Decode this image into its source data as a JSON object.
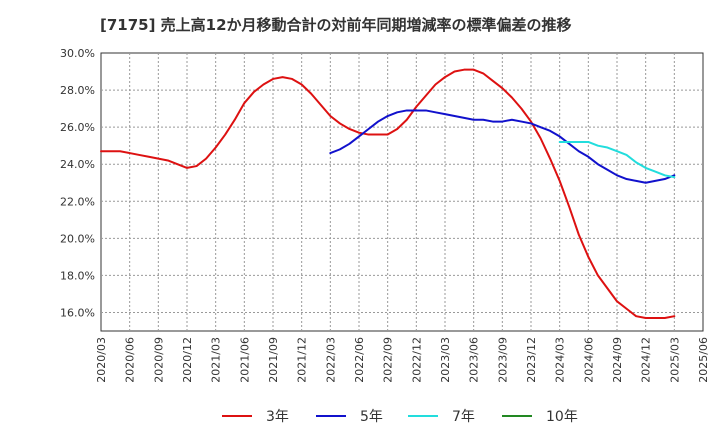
{
  "chart_data": {
    "type": "line",
    "title": "[7175]  売上高12か月移動合計の対前年同期増減率の標準偏差の推移",
    "xlabel": "",
    "ylabel": "",
    "ylim": [
      15.0,
      30.0
    ],
    "yticks": [
      "16.0%",
      "18.0%",
      "20.0%",
      "22.0%",
      "24.0%",
      "26.0%",
      "28.0%",
      "30.0%"
    ],
    "ytick_values": [
      16,
      18,
      20,
      22,
      24,
      26,
      28,
      30
    ],
    "xticks": [
      "2020/03",
      "2020/06",
      "2020/09",
      "2020/12",
      "2021/03",
      "2021/06",
      "2021/09",
      "2021/12",
      "2022/03",
      "2022/06",
      "2022/09",
      "2022/12",
      "2023/03",
      "2023/06",
      "2023/09",
      "2023/12",
      "2024/03",
      "2024/06",
      "2024/09",
      "2024/12",
      "2025/03",
      "2025/06"
    ],
    "grid": true,
    "legend": "bottom",
    "series": [
      {
        "name": "3年",
        "color": "#dd1111",
        "points": [
          [
            "2020/03",
            24.7
          ],
          [
            "2020/04",
            24.7
          ],
          [
            "2020/05",
            24.7
          ],
          [
            "2020/06",
            24.6
          ],
          [
            "2020/07",
            24.5
          ],
          [
            "2020/08",
            24.4
          ],
          [
            "2020/09",
            24.3
          ],
          [
            "2020/10",
            24.2
          ],
          [
            "2020/11",
            24.0
          ],
          [
            "2020/12",
            23.8
          ],
          [
            "2021/01",
            23.9
          ],
          [
            "2021/02",
            24.3
          ],
          [
            "2021/03",
            24.9
          ],
          [
            "2021/04",
            25.6
          ],
          [
            "2021/05",
            26.4
          ],
          [
            "2021/06",
            27.3
          ],
          [
            "2021/07",
            27.9
          ],
          [
            "2021/08",
            28.3
          ],
          [
            "2021/09",
            28.6
          ],
          [
            "2021/10",
            28.7
          ],
          [
            "2021/11",
            28.6
          ],
          [
            "2021/12",
            28.3
          ],
          [
            "2022/01",
            27.8
          ],
          [
            "2022/02",
            27.2
          ],
          [
            "2022/03",
            26.6
          ],
          [
            "2022/04",
            26.2
          ],
          [
            "2022/05",
            25.9
          ],
          [
            "2022/06",
            25.7
          ],
          [
            "2022/07",
            25.6
          ],
          [
            "2022/08",
            25.6
          ],
          [
            "2022/09",
            25.6
          ],
          [
            "2022/10",
            25.9
          ],
          [
            "2022/11",
            26.4
          ],
          [
            "2022/12",
            27.1
          ],
          [
            "2023/01",
            27.7
          ],
          [
            "2023/02",
            28.3
          ],
          [
            "2023/03",
            28.7
          ],
          [
            "2023/04",
            29.0
          ],
          [
            "2023/05",
            29.1
          ],
          [
            "2023/06",
            29.1
          ],
          [
            "2023/07",
            28.9
          ],
          [
            "2023/08",
            28.5
          ],
          [
            "2023/09",
            28.1
          ],
          [
            "2023/10",
            27.6
          ],
          [
            "2023/11",
            27.0
          ],
          [
            "2023/12",
            26.3
          ],
          [
            "2024/01",
            25.4
          ],
          [
            "2024/02",
            24.3
          ],
          [
            "2024/03",
            23.1
          ],
          [
            "2024/04",
            21.7
          ],
          [
            "2024/05",
            20.2
          ],
          [
            "2024/06",
            19.0
          ],
          [
            "2024/07",
            18.0
          ],
          [
            "2024/08",
            17.3
          ],
          [
            "2024/09",
            16.6
          ],
          [
            "2024/10",
            16.2
          ],
          [
            "2024/11",
            15.8
          ],
          [
            "2024/12",
            15.7
          ],
          [
            "2025/01",
            15.7
          ],
          [
            "2025/02",
            15.7
          ],
          [
            "2025/03",
            15.8
          ]
        ]
      },
      {
        "name": "5年",
        "color": "#1111cc",
        "points": [
          [
            "2022/03",
            24.6
          ],
          [
            "2022/04",
            24.8
          ],
          [
            "2022/05",
            25.1
          ],
          [
            "2022/06",
            25.5
          ],
          [
            "2022/07",
            25.9
          ],
          [
            "2022/08",
            26.3
          ],
          [
            "2022/09",
            26.6
          ],
          [
            "2022/10",
            26.8
          ],
          [
            "2022/11",
            26.9
          ],
          [
            "2022/12",
            26.9
          ],
          [
            "2023/01",
            26.9
          ],
          [
            "2023/02",
            26.8
          ],
          [
            "2023/03",
            26.7
          ],
          [
            "2023/04",
            26.6
          ],
          [
            "2023/05",
            26.5
          ],
          [
            "2023/06",
            26.4
          ],
          [
            "2023/07",
            26.4
          ],
          [
            "2023/08",
            26.3
          ],
          [
            "2023/09",
            26.3
          ],
          [
            "2023/10",
            26.4
          ],
          [
            "2023/11",
            26.3
          ],
          [
            "2023/12",
            26.2
          ],
          [
            "2024/01",
            26.0
          ],
          [
            "2024/02",
            25.8
          ],
          [
            "2024/03",
            25.5
          ],
          [
            "2024/04",
            25.1
          ],
          [
            "2024/05",
            24.7
          ],
          [
            "2024/06",
            24.4
          ],
          [
            "2024/07",
            24.0
          ],
          [
            "2024/08",
            23.7
          ],
          [
            "2024/09",
            23.4
          ],
          [
            "2024/10",
            23.2
          ],
          [
            "2024/11",
            23.1
          ],
          [
            "2024/12",
            23.0
          ],
          [
            "2025/01",
            23.1
          ],
          [
            "2025/02",
            23.2
          ],
          [
            "2025/03",
            23.4
          ]
        ]
      },
      {
        "name": "7年",
        "color": "#22dddd",
        "points": [
          [
            "2024/03",
            25.2
          ],
          [
            "2024/04",
            25.2
          ],
          [
            "2024/05",
            25.2
          ],
          [
            "2024/06",
            25.2
          ],
          [
            "2024/07",
            25.0
          ],
          [
            "2024/08",
            24.9
          ],
          [
            "2024/09",
            24.7
          ],
          [
            "2024/10",
            24.5
          ],
          [
            "2024/11",
            24.1
          ],
          [
            "2024/12",
            23.8
          ],
          [
            "2025/01",
            23.6
          ],
          [
            "2025/02",
            23.4
          ],
          [
            "2025/03",
            23.3
          ]
        ]
      },
      {
        "name": "10年",
        "color": "#228822",
        "points": []
      }
    ]
  }
}
